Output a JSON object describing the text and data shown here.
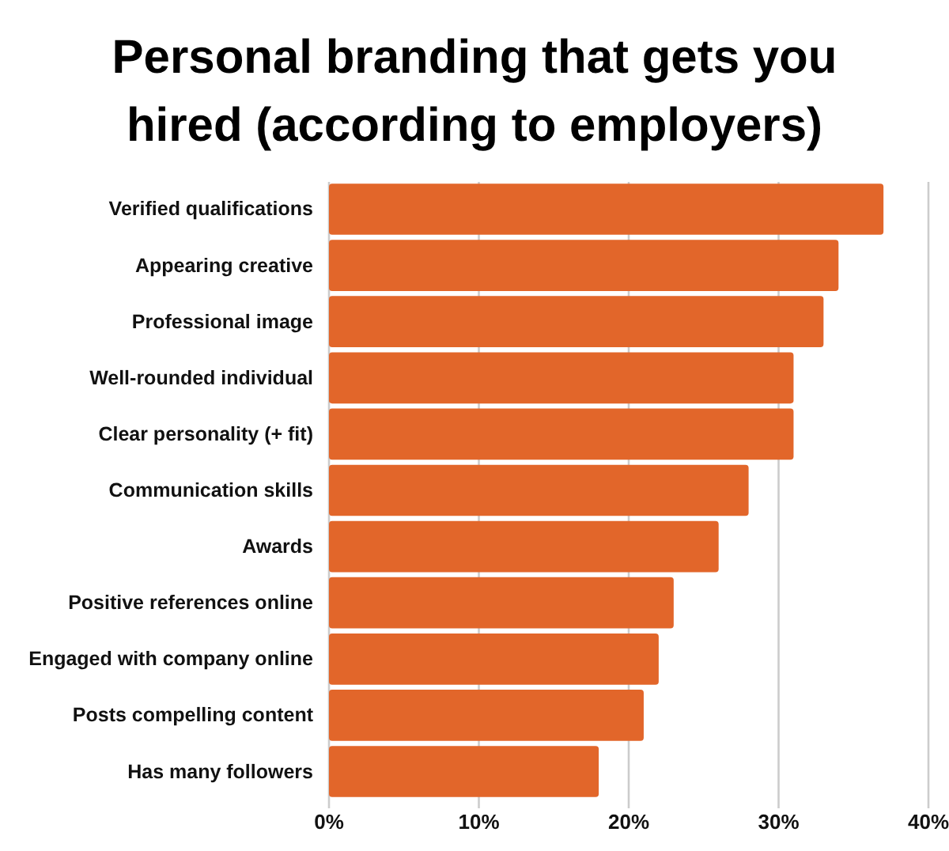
{
  "chart_data": {
    "type": "bar",
    "orientation": "horizontal",
    "title": "Personal branding that gets you hired (according to employers)",
    "categories": [
      "Verified qualifications",
      "Appearing creative",
      "Professional image",
      "Well-rounded individual",
      "Clear personality (+ fit)",
      "Communication skills",
      "Awards",
      "Positive references online",
      "Engaged with company online",
      "Posts compelling content",
      "Has many followers"
    ],
    "values": [
      37,
      34,
      33,
      31,
      31,
      28,
      26,
      23,
      22,
      21,
      18
    ],
    "color": "#e2662a",
    "xlim": [
      0,
      40
    ],
    "xticks": [
      {
        "value": 0,
        "label": "0%"
      },
      {
        "value": 10,
        "label": "10%"
      },
      {
        "value": 20,
        "label": "20%"
      },
      {
        "value": 30,
        "label": "30%"
      },
      {
        "value": 40,
        "label": "40%"
      }
    ],
    "grid": "x"
  }
}
